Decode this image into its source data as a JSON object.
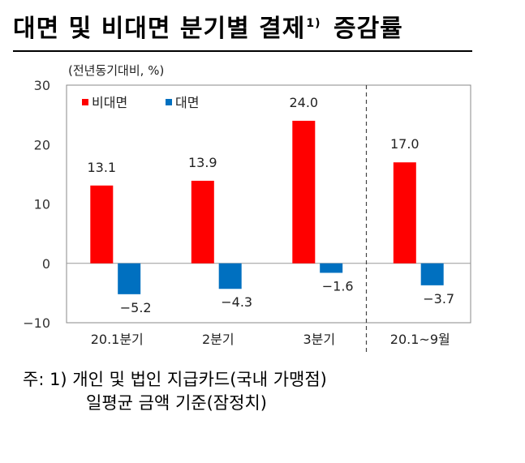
{
  "title_main": "대면 및 비대면 분기별 결제",
  "title_sup": "1)",
  "title_tail": "증감률",
  "unit_label": "(전년동기대비, %)",
  "notes": {
    "line1": "주: 1) 개인 및 법인 지급카드(국내 가맹점)",
    "line2": "일평균 금액 기준(잠정치)"
  },
  "chart_data": {
    "type": "bar",
    "categories": [
      "20.1분기",
      "2분기",
      "3분기",
      "20.1~9월"
    ],
    "series": [
      {
        "name": "비대면",
        "color": "#ff0000",
        "values": [
          13.1,
          13.9,
          24.0,
          17.0
        ],
        "labels": [
          "13.1",
          "13.9",
          "24.0",
          "17.0"
        ]
      },
      {
        "name": "대면",
        "color": "#0070c0",
        "values": [
          -5.2,
          -4.3,
          -1.6,
          -3.7
        ],
        "labels": [
          "−5.2",
          "−4.3",
          "−1.6",
          "−3.7"
        ]
      }
    ],
    "yticks": [
      "30",
      "20",
      "10",
      "0",
      "−10"
    ],
    "ylim": [
      -10,
      30
    ],
    "legend_position": "top-left",
    "separator_before_last_category": true
  }
}
